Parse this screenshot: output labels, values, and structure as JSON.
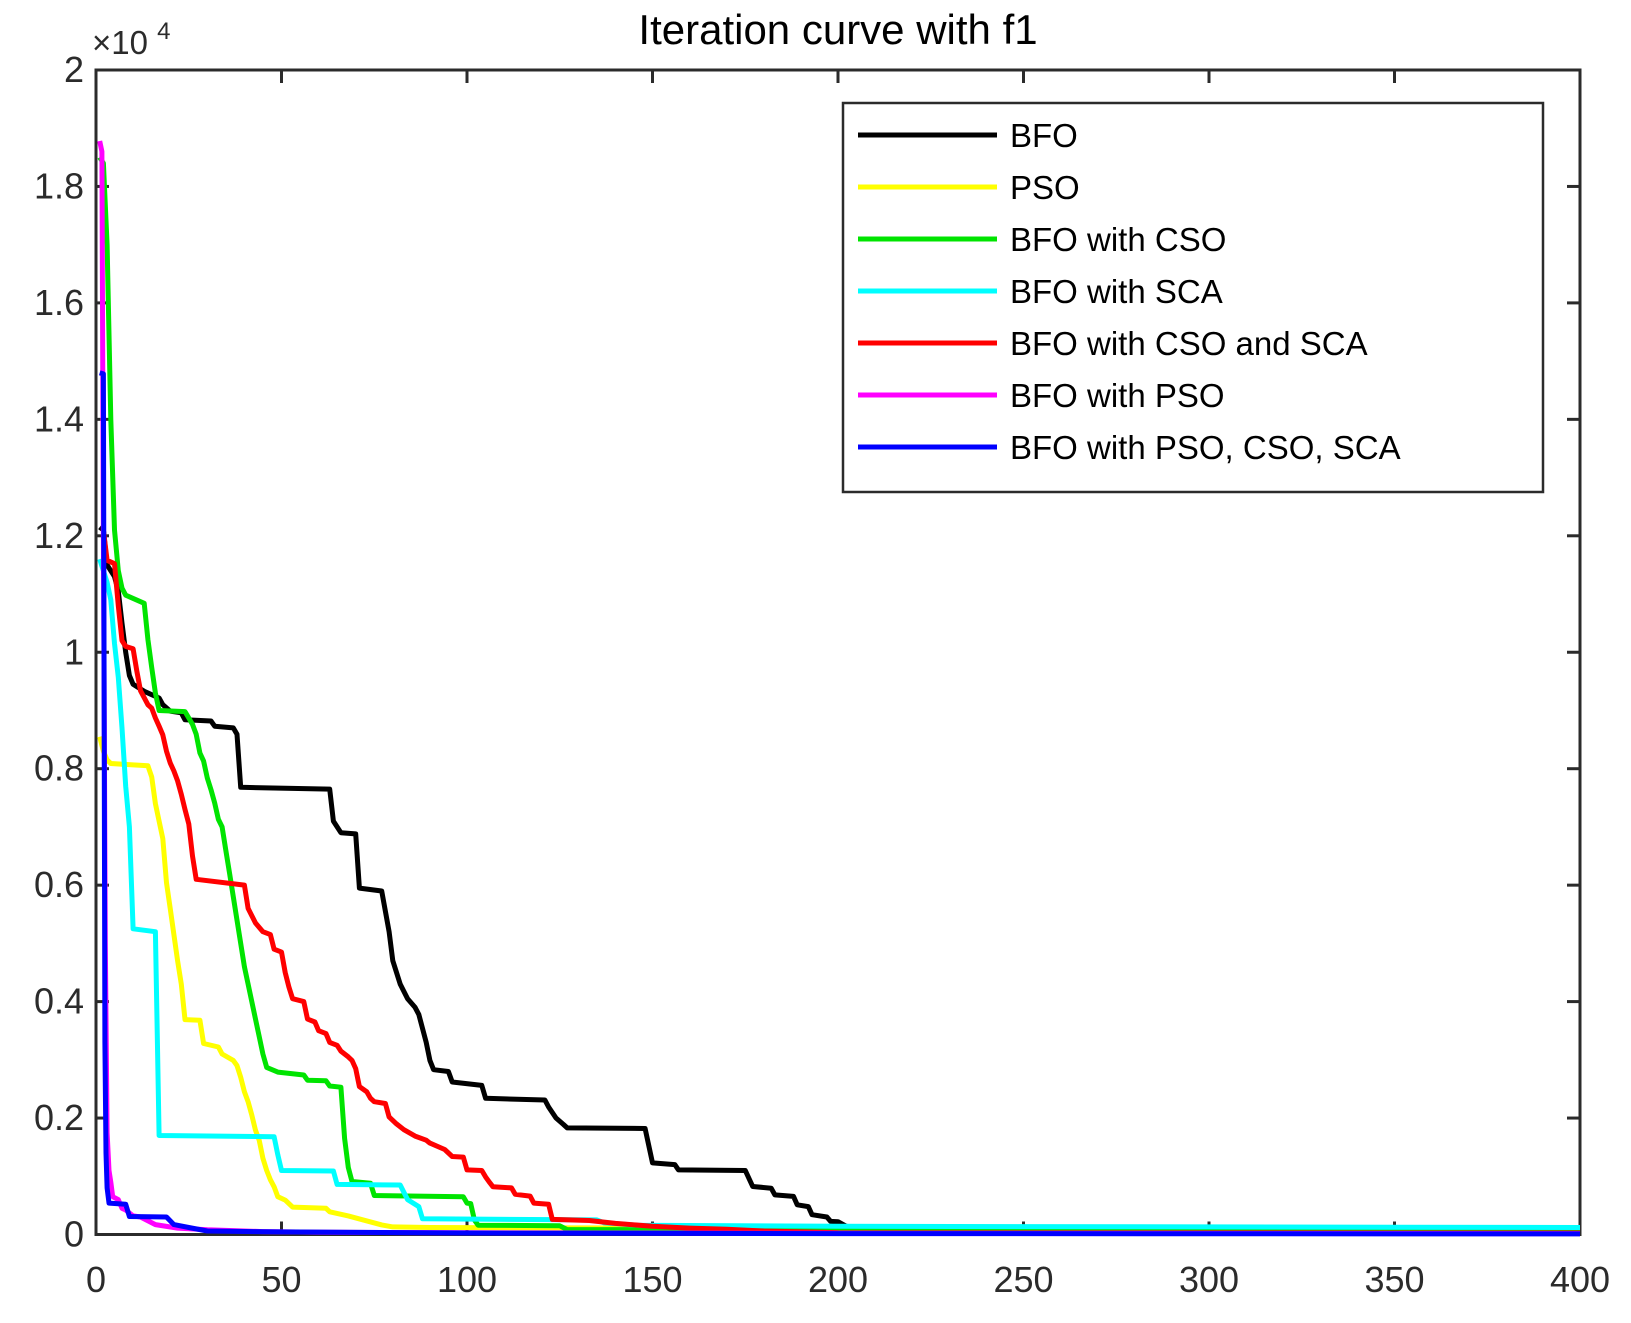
{
  "figure": {
    "title": "Iteration curve with f1",
    "y_exponent_base": "×10",
    "y_exponent_power": "4"
  },
  "chart_data": {
    "type": "line",
    "title": "Iteration curve with f1",
    "xlabel": "",
    "ylabel": "",
    "xlim": [
      0,
      400
    ],
    "ylim": [
      0,
      20000
    ],
    "x_ticks": [
      0,
      50,
      100,
      150,
      200,
      250,
      300,
      350,
      400
    ],
    "x_tick_labels": [
      "0",
      "50",
      "100",
      "150",
      "200",
      "250",
      "300",
      "350",
      "400"
    ],
    "y_ticks": [
      0,
      2000,
      4000,
      6000,
      8000,
      10000,
      12000,
      14000,
      16000,
      18000,
      20000
    ],
    "y_tick_labels": [
      "0",
      "0.2",
      "0.4",
      "0.6",
      "0.8",
      "1",
      "1.2",
      "1.4",
      "1.6",
      "1.8",
      "2"
    ],
    "y_axis_multiplier": "×10^4",
    "grid": false,
    "legend_position": "upper right",
    "axis_color": "#2b2b2b",
    "background_color": "#ffffff",
    "series": [
      {
        "name": "BFO",
        "color": "#000000",
        "points": [
          [
            1,
            12150
          ],
          [
            2,
            12100
          ],
          [
            3,
            11500
          ],
          [
            5,
            11300
          ],
          [
            6,
            11050
          ],
          [
            7,
            10500
          ],
          [
            8,
            10000
          ],
          [
            9,
            9600
          ],
          [
            10,
            9450
          ],
          [
            13,
            9330
          ],
          [
            17,
            9215
          ],
          [
            18,
            9100
          ],
          [
            20,
            8990
          ],
          [
            23,
            8960
          ],
          [
            24,
            8840
          ],
          [
            31,
            8820
          ],
          [
            32,
            8730
          ],
          [
            37,
            8700
          ],
          [
            38,
            8590
          ],
          [
            39,
            7680
          ],
          [
            63,
            7650
          ],
          [
            64,
            7100
          ],
          [
            66,
            6900
          ],
          [
            70,
            6880
          ],
          [
            71,
            5950
          ],
          [
            77,
            5900
          ],
          [
            79,
            5200
          ],
          [
            80,
            4700
          ],
          [
            82,
            4300
          ],
          [
            84,
            4050
          ],
          [
            86,
            3900
          ],
          [
            87,
            3780
          ],
          [
            89,
            3300
          ],
          [
            90,
            2990
          ],
          [
            91,
            2830
          ],
          [
            95,
            2800
          ],
          [
            96,
            2620
          ],
          [
            104,
            2560
          ],
          [
            105,
            2340
          ],
          [
            121,
            2310
          ],
          [
            122,
            2190
          ],
          [
            124,
            2000
          ],
          [
            126,
            1890
          ],
          [
            127,
            1830
          ],
          [
            148,
            1820
          ],
          [
            150,
            1230
          ],
          [
            156,
            1200
          ],
          [
            157,
            1110
          ],
          [
            175,
            1100
          ],
          [
            177,
            825
          ],
          [
            182,
            795
          ],
          [
            183,
            680
          ],
          [
            188,
            655
          ],
          [
            189,
            510
          ],
          [
            192,
            480
          ],
          [
            193,
            340
          ],
          [
            197,
            300
          ],
          [
            198,
            225
          ],
          [
            200,
            220
          ],
          [
            202,
            150
          ],
          [
            205,
            80
          ],
          [
            210,
            45
          ],
          [
            400,
            40
          ]
        ]
      },
      {
        "name": "PSO",
        "color": "#ffff00",
        "points": [
          [
            1,
            8550
          ],
          [
            2,
            8300
          ],
          [
            3,
            8150
          ],
          [
            4,
            8090
          ],
          [
            14,
            8050
          ],
          [
            15,
            7860
          ],
          [
            16,
            7400
          ],
          [
            17,
            7100
          ],
          [
            18,
            6800
          ],
          [
            19,
            6040
          ],
          [
            20,
            5600
          ],
          [
            21,
            5150
          ],
          [
            22,
            4700
          ],
          [
            23,
            4300
          ],
          [
            24,
            3690
          ],
          [
            28,
            3680
          ],
          [
            29,
            3280
          ],
          [
            33,
            3220
          ],
          [
            34,
            3100
          ],
          [
            37,
            2990
          ],
          [
            38,
            2900
          ],
          [
            39,
            2700
          ],
          [
            40,
            2450
          ],
          [
            41,
            2280
          ],
          [
            42,
            2050
          ],
          [
            43,
            1790
          ],
          [
            44,
            1620
          ],
          [
            45,
            1310
          ],
          [
            46,
            1100
          ],
          [
            47,
            940
          ],
          [
            48,
            820
          ],
          [
            49,
            650
          ],
          [
            51,
            590
          ],
          [
            53,
            470
          ],
          [
            62,
            450
          ],
          [
            63,
            390
          ],
          [
            68,
            320
          ],
          [
            72,
            250
          ],
          [
            77,
            165
          ],
          [
            80,
            130
          ],
          [
            90,
            120
          ],
          [
            150,
            110
          ],
          [
            200,
            80
          ],
          [
            400,
            60
          ]
        ]
      },
      {
        "name": "BFO with CSO",
        "color": "#00e400",
        "points": [
          [
            1,
            18500
          ],
          [
            2,
            18400
          ],
          [
            3,
            17000
          ],
          [
            4,
            14000
          ],
          [
            5,
            12100
          ],
          [
            6,
            11400
          ],
          [
            7,
            11100
          ],
          [
            8,
            10980
          ],
          [
            13,
            10840
          ],
          [
            14,
            10220
          ],
          [
            15,
            9740
          ],
          [
            16,
            9300
          ],
          [
            17,
            9000
          ],
          [
            24,
            8980
          ],
          [
            25,
            8870
          ],
          [
            26,
            8760
          ],
          [
            27,
            8590
          ],
          [
            28,
            8270
          ],
          [
            29,
            8130
          ],
          [
            30,
            7840
          ],
          [
            31,
            7640
          ],
          [
            32,
            7410
          ],
          [
            33,
            7130
          ],
          [
            34,
            7000
          ],
          [
            35,
            6600
          ],
          [
            36,
            6200
          ],
          [
            37,
            5800
          ],
          [
            38,
            5400
          ],
          [
            39,
            5000
          ],
          [
            40,
            4600
          ],
          [
            41,
            4300
          ],
          [
            42,
            4000
          ],
          [
            43,
            3700
          ],
          [
            44,
            3400
          ],
          [
            45,
            3100
          ],
          [
            46,
            2870
          ],
          [
            49,
            2790
          ],
          [
            56,
            2740
          ],
          [
            57,
            2650
          ],
          [
            62,
            2640
          ],
          [
            63,
            2550
          ],
          [
            66,
            2530
          ],
          [
            67,
            1650
          ],
          [
            68,
            1150
          ],
          [
            69,
            910
          ],
          [
            74,
            880
          ],
          [
            75,
            670
          ],
          [
            99,
            650
          ],
          [
            100,
            540
          ],
          [
            101,
            530
          ],
          [
            102,
            250
          ],
          [
            103,
            160
          ],
          [
            125,
            150
          ],
          [
            127,
            85
          ],
          [
            400,
            80
          ]
        ]
      },
      {
        "name": "BFO with SCA",
        "color": "#00ffff",
        "points": [
          [
            1,
            11600
          ],
          [
            2,
            11400
          ],
          [
            3,
            11200
          ],
          [
            4,
            10900
          ],
          [
            5,
            10150
          ],
          [
            6,
            9570
          ],
          [
            7,
            8700
          ],
          [
            8,
            7700
          ],
          [
            9,
            7000
          ],
          [
            10,
            5250
          ],
          [
            16,
            5200
          ],
          [
            17,
            1700
          ],
          [
            48,
            1680
          ],
          [
            49,
            1370
          ],
          [
            50,
            1100
          ],
          [
            64,
            1090
          ],
          [
            65,
            860
          ],
          [
            82,
            850
          ],
          [
            84,
            600
          ],
          [
            87,
            480
          ],
          [
            88,
            270
          ],
          [
            135,
            250
          ],
          [
            137,
            200
          ],
          [
            146,
            160
          ],
          [
            200,
            140
          ],
          [
            400,
            120
          ]
        ]
      },
      {
        "name": "BFO with CSO and SCA",
        "color": "#ff0000",
        "points": [
          [
            2,
            12100
          ],
          [
            3,
            11580
          ],
          [
            5,
            11520
          ],
          [
            6,
            10800
          ],
          [
            7,
            10200
          ],
          [
            8,
            10100
          ],
          [
            10,
            10060
          ],
          [
            11,
            9680
          ],
          [
            12,
            9340
          ],
          [
            14,
            9100
          ],
          [
            15,
            9040
          ],
          [
            16,
            8870
          ],
          [
            17,
            8730
          ],
          [
            18,
            8580
          ],
          [
            19,
            8300
          ],
          [
            20,
            8100
          ],
          [
            21,
            7960
          ],
          [
            22,
            7790
          ],
          [
            23,
            7560
          ],
          [
            24,
            7300
          ],
          [
            25,
            7050
          ],
          [
            26,
            6500
          ],
          [
            27,
            6100
          ],
          [
            40,
            6000
          ],
          [
            41,
            5600
          ],
          [
            43,
            5350
          ],
          [
            45,
            5200
          ],
          [
            47,
            5150
          ],
          [
            48,
            4900
          ],
          [
            50,
            4850
          ],
          [
            51,
            4500
          ],
          [
            52,
            4250
          ],
          [
            53,
            4050
          ],
          [
            56,
            4000
          ],
          [
            57,
            3700
          ],
          [
            59,
            3650
          ],
          [
            60,
            3500
          ],
          [
            62,
            3450
          ],
          [
            63,
            3300
          ],
          [
            65,
            3250
          ],
          [
            66,
            3150
          ],
          [
            68,
            3050
          ],
          [
            69,
            2990
          ],
          [
            70,
            2850
          ],
          [
            71,
            2540
          ],
          [
            73,
            2450
          ],
          [
            74,
            2340
          ],
          [
            75,
            2280
          ],
          [
            78,
            2250
          ],
          [
            79,
            2020
          ],
          [
            80,
            1960
          ],
          [
            81,
            1900
          ],
          [
            83,
            1800
          ],
          [
            86,
            1690
          ],
          [
            89,
            1620
          ],
          [
            90,
            1570
          ],
          [
            94,
            1460
          ],
          [
            96,
            1340
          ],
          [
            99,
            1330
          ],
          [
            100,
            1110
          ],
          [
            104,
            1100
          ],
          [
            105,
            990
          ],
          [
            106,
            900
          ],
          [
            107,
            820
          ],
          [
            112,
            800
          ],
          [
            113,
            690
          ],
          [
            117,
            660
          ],
          [
            118,
            540
          ],
          [
            122,
            520
          ],
          [
            123,
            260
          ],
          [
            133,
            240
          ],
          [
            140,
            190
          ],
          [
            150,
            140
          ],
          [
            160,
            110
          ],
          [
            170,
            90
          ],
          [
            180,
            60
          ],
          [
            195,
            40
          ],
          [
            200,
            30
          ],
          [
            400,
            25
          ]
        ]
      },
      {
        "name": "BFO with PSO",
        "color": "#ff00ff",
        "points": [
          [
            1,
            18780
          ],
          [
            1.6,
            18600
          ],
          [
            2,
            12000
          ],
          [
            2.5,
            5000
          ],
          [
            3,
            1750
          ],
          [
            3.5,
            1100
          ],
          [
            4,
            900
          ],
          [
            4.5,
            650
          ],
          [
            6,
            600
          ],
          [
            7,
            450
          ],
          [
            8,
            420
          ],
          [
            10,
            320
          ],
          [
            12,
            300
          ],
          [
            16,
            170
          ],
          [
            22,
            110
          ],
          [
            30,
            80
          ],
          [
            45,
            50
          ],
          [
            60,
            40
          ],
          [
            100,
            30
          ],
          [
            200,
            20
          ],
          [
            400,
            15
          ]
        ]
      },
      {
        "name": "BFO with PSO、CSO、SCA",
        "color": "#0000ff",
        "points": [
          [
            1,
            14800
          ],
          [
            2,
            14780
          ],
          [
            2.4,
            3300
          ],
          [
            2.7,
            1400
          ],
          [
            3,
            800
          ],
          [
            3.5,
            540
          ],
          [
            8,
            520
          ],
          [
            9,
            310
          ],
          [
            19,
            300
          ],
          [
            21,
            170
          ],
          [
            25,
            120
          ],
          [
            30,
            60
          ],
          [
            50,
            45
          ],
          [
            100,
            25
          ],
          [
            200,
            15
          ],
          [
            400,
            10
          ]
        ]
      }
    ]
  }
}
